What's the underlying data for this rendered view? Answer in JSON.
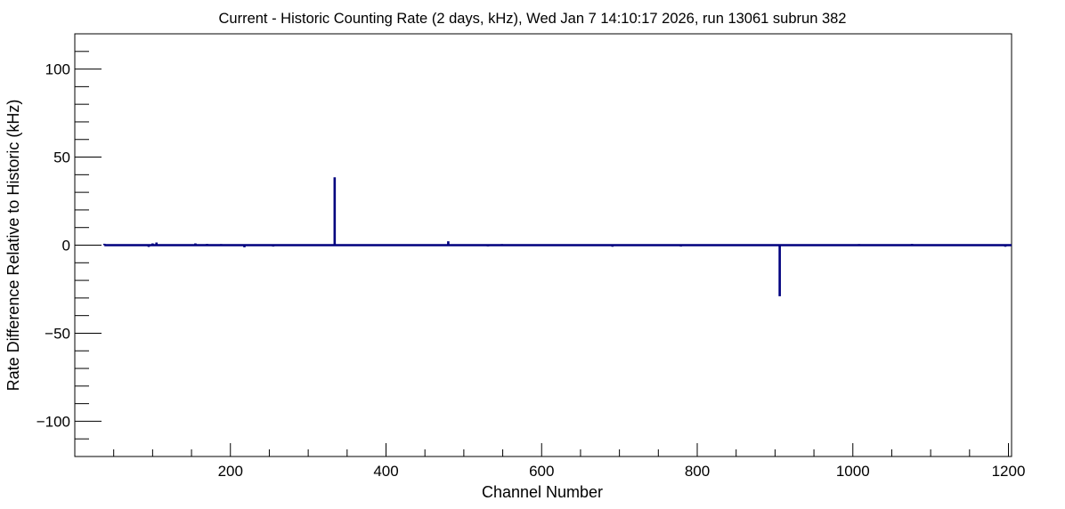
{
  "chart_data": {
    "type": "bar",
    "title": "Current - Historic Counting Rate (2 days, kHz), Wed Jan  7 14:10:17 2026, run 13061 subrun 382",
    "xlabel": "Channel Number",
    "ylabel": "Rate Difference Relative to Historic (kHz)",
    "xlim": [
      0,
      1204
    ],
    "ylim": [
      -120,
      120
    ],
    "x_ticks": [
      200,
      400,
      600,
      800,
      1000,
      1200
    ],
    "x_tick_labels": [
      "200",
      "400",
      "600",
      "800",
      "1000",
      "1200"
    ],
    "y_ticks": [
      100,
      50,
      0,
      -50,
      -100
    ],
    "y_tick_labels": [
      "100",
      "50",
      "0",
      "−50",
      "−100"
    ],
    "series": [
      {
        "color": "#00007f",
        "x": [
          38,
          95,
          100,
          105,
          155,
          170,
          188,
          218,
          255,
          334,
          480,
          531,
          549,
          691,
          779,
          906,
          1008,
          1076,
          1196
        ],
        "values": [
          0.8,
          -1.0,
          1.0,
          1.5,
          1.0,
          0.7,
          0.6,
          -1.2,
          -0.8,
          38.5,
          2.2,
          -0.7,
          0.6,
          -0.9,
          -0.8,
          -29.0,
          0.6,
          0.7,
          -0.9
        ]
      }
    ],
    "grid": false,
    "legend": "none"
  }
}
